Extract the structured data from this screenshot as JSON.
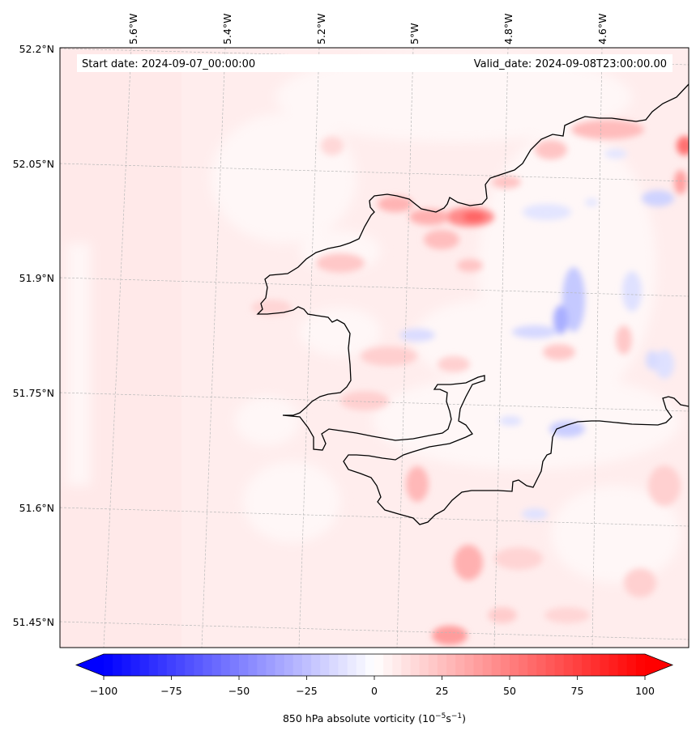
{
  "map": {
    "start_date_label": "Start date: 2024-09-07_00:00:00",
    "valid_date_label": "Valid_date: 2024-09-08T23:00:00.00",
    "lon_ticks": [
      "5.6°W",
      "5.4°W",
      "5.2°W",
      "5°W",
      "4.8°W",
      "4.6°W"
    ],
    "lat_ticks": [
      "52.2°N",
      "52.05°N",
      "51.9°N",
      "51.75°N",
      "51.6°N",
      "51.45°N"
    ]
  },
  "colorbar": {
    "label_main": "850 hPa absolute vorticity (10",
    "label_exp1": "−5",
    "label_mid": "s",
    "label_exp2": "−1",
    "label_end": ")",
    "ticks": [
      "−100",
      "−75",
      "−50",
      "−25",
      "0",
      "25",
      "50",
      "75",
      "100"
    ],
    "vmin": -100,
    "vmax": 100,
    "levels": 60,
    "negative_color": "#0000ff",
    "positive_color": "#ff0000"
  }
}
